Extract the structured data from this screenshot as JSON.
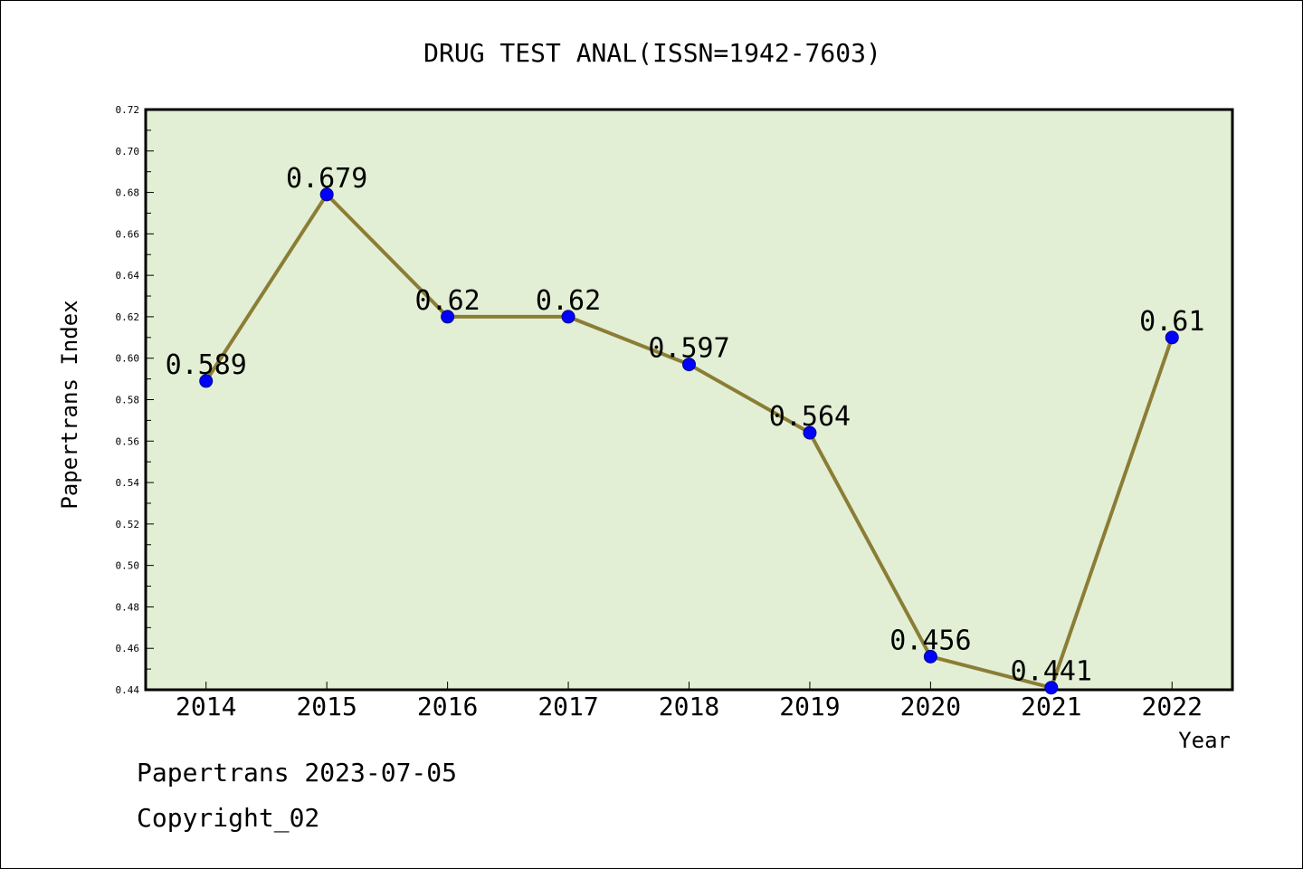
{
  "chart_data": {
    "type": "line",
    "title": "DRUG TEST ANAL(ISSN=1942-7603)",
    "xlabel": "Year",
    "ylabel": "Papertrans Index",
    "categories": [
      "2014",
      "2015",
      "2016",
      "2017",
      "2018",
      "2019",
      "2020",
      "2021",
      "2022"
    ],
    "series": [
      {
        "values": [
          0.589,
          0.679,
          0.62,
          0.62,
          0.597,
          0.564,
          0.456,
          0.441,
          0.61
        ],
        "labels": [
          "0.589",
          "0.679",
          "0.62",
          "0.62",
          "0.597",
          "0.564",
          "0.456",
          "0.441",
          "0.61"
        ]
      }
    ],
    "ylim": [
      0.44,
      0.72
    ],
    "yticks": [
      "0.44",
      "0.46",
      "0.48",
      "0.50",
      "0.52",
      "0.54",
      "0.56",
      "0.58",
      "0.60",
      "0.62",
      "0.64",
      "0.66",
      "0.68",
      "0.70",
      "0.72"
    ],
    "grid": false,
    "legend": "none",
    "colors": {
      "plot_background": "#e2efd5",
      "line": "#8b7d35",
      "marker": "#0000ff"
    }
  },
  "footer": {
    "date_text": "Papertrans 2023-07-05",
    "copyright_text": "Copyright_02"
  }
}
